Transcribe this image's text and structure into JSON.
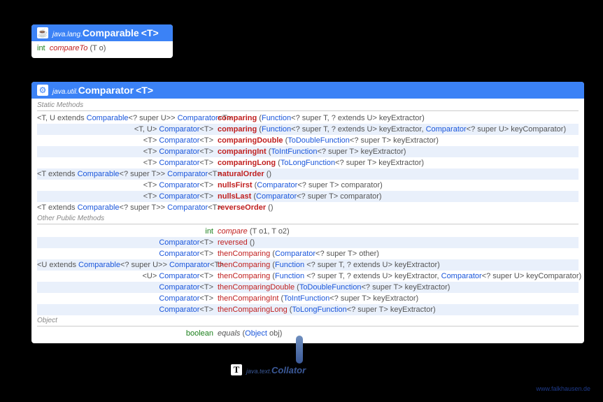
{
  "footer": "www.falkhausen.de",
  "small": {
    "icon": "☕",
    "pkg": "java.lang.",
    "cls": "Comparable",
    "tparam": "<T>",
    "method": {
      "ret": "int",
      "name": "compareTo",
      "args": "(T o)"
    }
  },
  "big": {
    "icon": "⚙",
    "pkg": "java.util.",
    "cls": "Comparator",
    "tparam": "<T>",
    "sections": {
      "s1": "Static Methods",
      "s2": "Other Public Methods",
      "s3": "Object"
    },
    "m": {
      "r0t": "<T, U extends ",
      "r0c": "Comparable",
      "r0t2": "<? super U>> ",
      "r0r": "Comparator",
      "r0rt": "<T>",
      "r0n": "comparing",
      "r0p1": "Function",
      "r0p2": "<? super T, ? extends U> keyExtractor)",
      "r1t": "<T, U> ",
      "r1r": "Comparator",
      "r1rt": "<T>",
      "r1n": "comparing",
      "r1p1": "Function",
      "r1p2": "<? super T, ? extends U> keyExtractor, ",
      "r1p3": "Comparator",
      "r1p4": "<? super U> keyComparator)",
      "r2t": "<T> ",
      "r2r": "Comparator",
      "r2rt": "<T>",
      "r2n": "comparingDouble",
      "r2p1": "ToDoubleFunction",
      "r2p2": "<? super T> keyExtractor)",
      "r3t": "<T> ",
      "r3r": "Comparator",
      "r3rt": "<T>",
      "r3n": "comparingInt",
      "r3p1": "ToIntFunction",
      "r3p2": "<? super T> keyExtractor)",
      "r4t": "<T> ",
      "r4r": "Comparator",
      "r4rt": "<T>",
      "r4n": "comparingLong",
      "r4p1": "ToLongFunction",
      "r4p2": "<? super T> keyExtractor)",
      "r5t": "<T extends ",
      "r5c": "Comparable",
      "r5t2": "<? super T>> ",
      "r5r": "Comparator",
      "r5rt": "<T>",
      "r5n": "naturalOrder",
      "r5p": " ()",
      "r6t": "<T> ",
      "r6r": "Comparator",
      "r6rt": "<T>",
      "r6n": "nullsFirst",
      "r6p1": "Comparator",
      "r6p2": "<? super T> comparator)",
      "r7t": "<T> ",
      "r7r": "Comparator",
      "r7rt": "<T>",
      "r7n": "nullsLast",
      "r7p1": "Comparator",
      "r7p2": "<? super T> comparator)",
      "r8t": "<T extends ",
      "r8c": "Comparable",
      "r8t2": "<? super T>> ",
      "r8r": "Comparator",
      "r8rt": "<T>",
      "r8n": "reverseOrder",
      "r8p": " ()",
      "r9r": "int",
      "r9n": "compare",
      "r9p": " (T o1, T o2)",
      "r10r": "Comparator",
      "r10rt": "<T>",
      "r10n": "reversed",
      "r10p": " ()",
      "r11r": "Comparator",
      "r11rt": "<T>",
      "r11n": "thenComparing",
      "r11p1": "Comparator",
      "r11p2": "<? super T> other)",
      "r12t": "<U extends ",
      "r12c": "Comparable",
      "r12t2": "<? super U>> ",
      "r12r": "Comparator",
      "r12rt": "<T>",
      "r12n": "thenComparing",
      "r12p1": "Function",
      "r12p2": " <? super T, ? extends U> keyExtractor)",
      "r13t": "<U> ",
      "r13r": "Comparator",
      "r13rt": "<T>",
      "r13n": "thenComparing",
      "r13p1": "Function",
      "r13p2": " <? super T, ? extends U> keyExtractor, ",
      "r13p3": "Comparator",
      "r13p4": "<? super U> keyComparator)",
      "r14r": "Comparator",
      "r14rt": "<T>",
      "r14n": "thenComparingDouble",
      "r14p1": "ToDoubleFunction",
      "r14p2": "<? super T> keyExtractor)",
      "r15r": "Comparator",
      "r15rt": "<T>",
      "r15n": "thenComparingInt",
      "r15p1": "ToIntFunction",
      "r15p2": "<? super T> keyExtractor)",
      "r16r": "Comparator",
      "r16rt": "<T>",
      "r16n": "thenComparingLong",
      "r16p1": "ToLongFunction",
      "r16p2": "<? super T> keyExtractor)",
      "r17r": "boolean",
      "r17n": "equals",
      "r17p1": "Object",
      "r17p2": " obj)"
    }
  },
  "collator": {
    "icon": "T",
    "pkg": "java.text.",
    "cls": "Collator"
  },
  "lp": " (",
  "colors": {
    "header_bg": "#3b82f6",
    "blue": "#1a56db",
    "red": "#c02020",
    "green": "#1a7f1a",
    "gray": "#555555",
    "alt_bg": "#e9f0fb",
    "bg": "#000000"
  }
}
